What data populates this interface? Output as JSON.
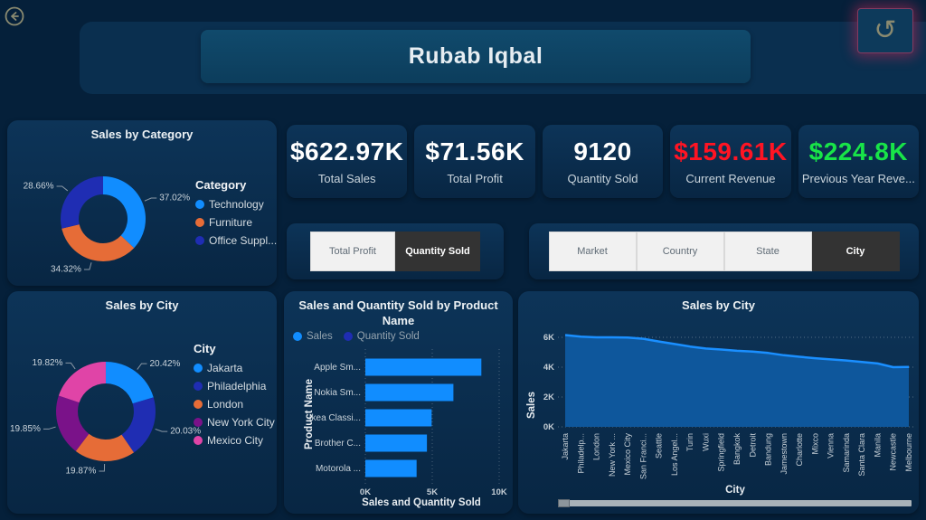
{
  "header": {
    "title": "Rubab Iqbal",
    "back_icon": "arrow-left-circle",
    "undo_icon": "undo-arrow",
    "undo_glyph": "↺"
  },
  "kpis": [
    {
      "value": "$622.97K",
      "label": "Total Sales",
      "color": "#FFFFFF"
    },
    {
      "value": "$71.56K",
      "label": "Total Profit",
      "color": "#FFFFFF"
    },
    {
      "value": "9120",
      "label": "Quantity Sold",
      "color": "#FFFFFF"
    },
    {
      "value": "$159.61K",
      "label": "Current Revenue",
      "color": "#FF1423"
    },
    {
      "value": "$224.8K",
      "label": "Previous Year Reve...",
      "color": "#18E448"
    }
  ],
  "filter_groups": {
    "measure": {
      "buttons": [
        {
          "label": "Total Profit",
          "selected": false
        },
        {
          "label": "Quantity Sold",
          "selected": true
        }
      ]
    },
    "geo": {
      "buttons": [
        {
          "label": "Market",
          "selected": false
        },
        {
          "label": "Country",
          "selected": false
        },
        {
          "label": "State",
          "selected": false
        },
        {
          "label": "City",
          "selected": true
        }
      ]
    }
  },
  "chart_data": [
    {
      "type": "donut",
      "title": "Sales by Category",
      "legend_title": "Category",
      "legend_position": "right",
      "slices": [
        {
          "label": "Technology",
          "pct": 37.02,
          "color": "#118DFF"
        },
        {
          "label": "Furniture",
          "pct": 34.32,
          "color": "#E66C37"
        },
        {
          "label": "Office Suppl...",
          "pct": 28.66,
          "color": "#1F2DB3"
        }
      ]
    },
    {
      "type": "donut",
      "title": "Sales by City",
      "legend_title": "City",
      "legend_position": "right",
      "slices": [
        {
          "label": "Jakarta",
          "pct": 20.42,
          "color": "#118DFF"
        },
        {
          "label": "Philadelphia",
          "pct": 20.03,
          "color": "#1F2DB3"
        },
        {
          "label": "London",
          "pct": 19.87,
          "color": "#E66C37"
        },
        {
          "label": "New York City",
          "pct": 19.85,
          "color": "#7A1289"
        },
        {
          "label": "Mexico City",
          "pct": 19.82,
          "color": "#E044A7"
        }
      ]
    },
    {
      "type": "bar",
      "orientation": "horizontal",
      "title": "Sales and Quantity Sold by Product Name",
      "xlabel": "Sales and Quantity Sold",
      "ylabel": "Product Name",
      "xticks": [
        "0K",
        "5K",
        "10K"
      ],
      "xlim": [
        0,
        10000
      ],
      "categories": [
        "Apple Sm...",
        "Nokia Sm...",
        "Ikea Classi...",
        "Brother C...",
        "Motorola ..."
      ],
      "series": [
        {
          "name": "Sales",
          "color": "#118DFF",
          "values": [
            8670,
            6580,
            4950,
            4600,
            3830
          ]
        },
        {
          "name": "Quantity Sold",
          "color": "#1F2DB3"
        }
      ],
      "grid": true,
      "legend_position": "top"
    },
    {
      "type": "area",
      "title": "Sales by City",
      "xlabel": "City",
      "ylabel": "Sales",
      "yticks": [
        "0K",
        "2K",
        "4K",
        "6K"
      ],
      "ylim": [
        0,
        7000
      ],
      "grid": true,
      "line_color": "#1A8FFF",
      "fill_color": "#0E579C",
      "x": [
        "Jakarta",
        "Philadelp...",
        "London",
        "New York ...",
        "Mexico City",
        "San Franci...",
        "Seattle",
        "Los Angel...",
        "Turin",
        "Wuxi",
        "Springfield",
        "Bangkok",
        "Detroit",
        "Bandung",
        "Jamestown",
        "Charlotte",
        "Mixco",
        "Vienna",
        "Samarinda",
        "Santa Clara",
        "Manila",
        "Newcastle",
        "Melbourne"
      ],
      "values": [
        6150,
        6050,
        6000,
        6000,
        5980,
        5900,
        5720,
        5550,
        5380,
        5250,
        5180,
        5100,
        5050,
        4950,
        4800,
        4700,
        4600,
        4520,
        4450,
        4350,
        4250,
        4000,
        4020
      ]
    }
  ]
}
